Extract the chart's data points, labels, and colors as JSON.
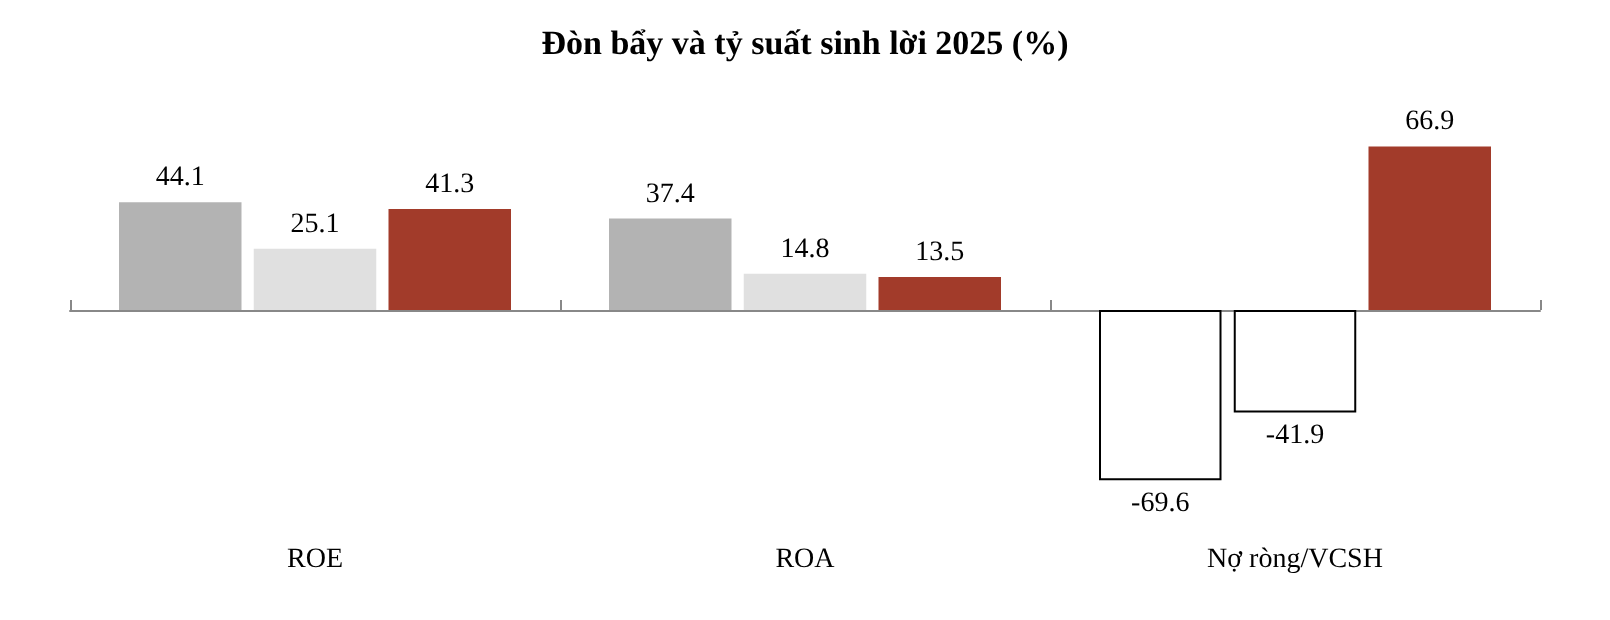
{
  "chart_data": {
    "type": "bar",
    "title": "Đòn bẩy và tỷ suất sinh lời 2025 (%)",
    "categories": [
      "ROE",
      "ROA",
      "Nợ ròng/VCSH"
    ],
    "series": [
      {
        "colors": [
          "#b3b3b3",
          "#b3b3b3",
          "#ffffff"
        ],
        "values": [
          44.1,
          37.4,
          -69.6
        ]
      },
      {
        "colors": [
          "#e0e0e0",
          "#e0e0e0",
          "#ffffff"
        ],
        "values": [
          25.1,
          14.8,
          -41.9
        ]
      },
      {
        "colors": [
          "#a23b2a",
          "#a23b2a",
          "#a23b2a"
        ],
        "values": [
          41.3,
          13.5,
          66.9
        ]
      }
    ],
    "data_labels": true
  }
}
